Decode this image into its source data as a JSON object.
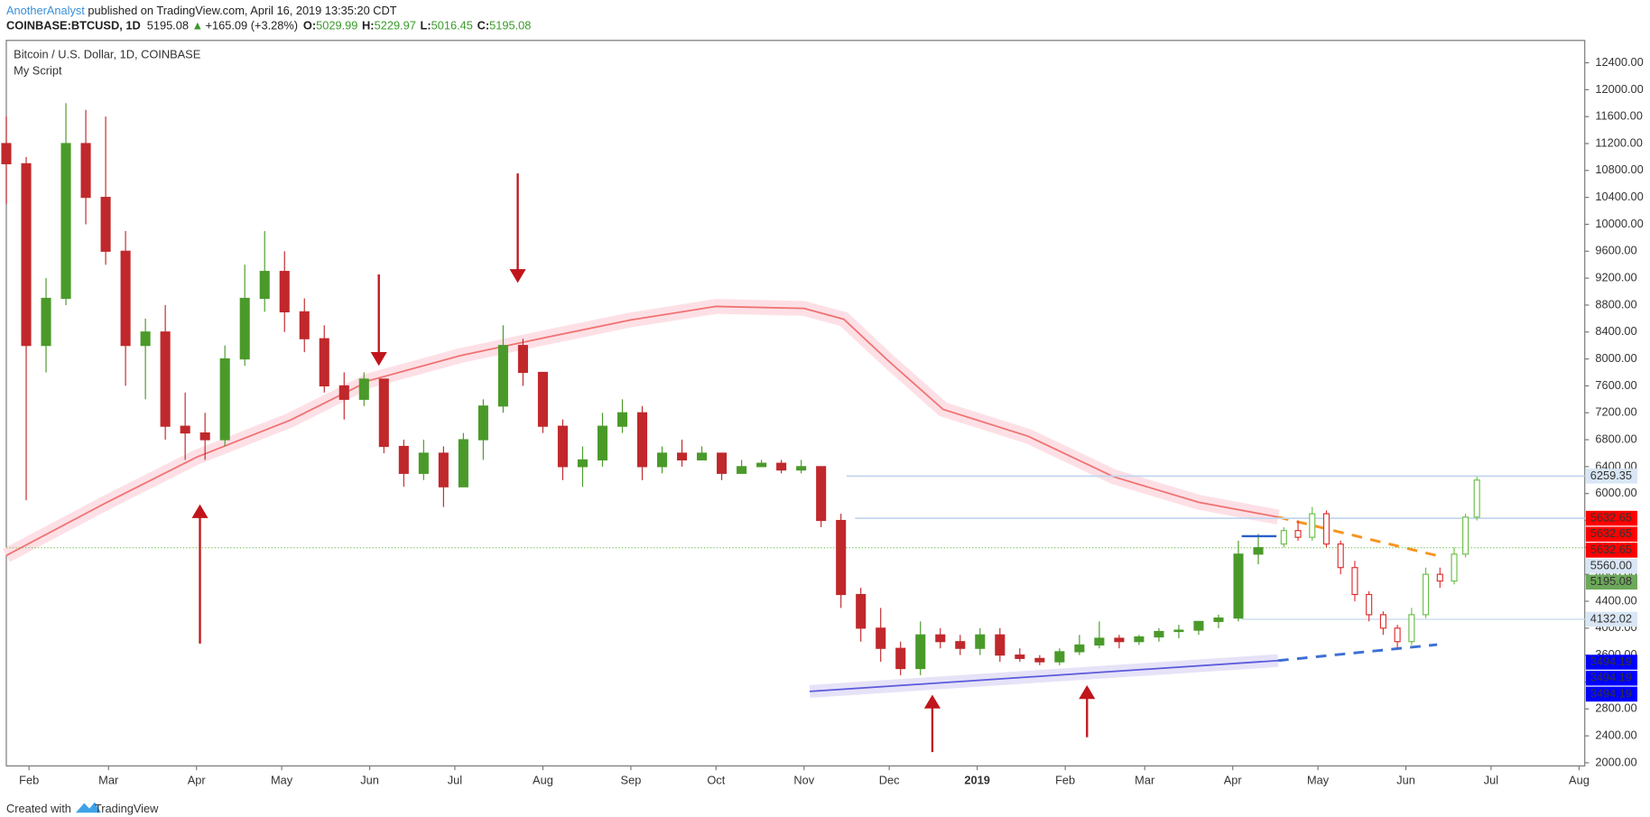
{
  "header": {
    "author": "AnotherAnalyst",
    "published": " published on TradingView.com, April 16, 2019 13:35:20 CDT",
    "symbol": "COINBASE:BTCUSD, 1D",
    "last": "5195.08",
    "arrow": "▲",
    "change": "+165.09 (+3.28%)",
    "o_label": "O:",
    "o": "5029.99",
    "h_label": "H:",
    "h": "5229.97",
    "l_label": "L:",
    "l": "5016.45",
    "c_label": "C:",
    "c": "5195.08"
  },
  "footer": {
    "created": "Created with",
    "brand": "TradingView"
  },
  "chart_data": {
    "type": "candlestick",
    "title": "Bitcoin / U.S. Dollar, 1D, COINBASE",
    "subtitle": "My Script",
    "up_color": "#4a9a2a",
    "down_color": "#c0282b",
    "xlim": [
      0,
      556
    ],
    "xticks": [
      {
        "value": 8,
        "label": "Feb"
      },
      {
        "value": 36,
        "label": "Mar"
      },
      {
        "value": 67,
        "label": "Apr"
      },
      {
        "value": 97,
        "label": "May"
      },
      {
        "value": 128,
        "label": "Jun"
      },
      {
        "value": 158,
        "label": "Jul"
      },
      {
        "value": 189,
        "label": "Aug"
      },
      {
        "value": 220,
        "label": "Sep"
      },
      {
        "value": 250,
        "label": "Oct"
      },
      {
        "value": 281,
        "label": "Nov"
      },
      {
        "value": 311,
        "label": "Dec"
      },
      {
        "value": 342,
        "label": "2019"
      },
      {
        "value": 373,
        "label": "Feb"
      },
      {
        "value": 401,
        "label": "Mar"
      },
      {
        "value": 432,
        "label": "Apr"
      },
      {
        "value": 462,
        "label": "May"
      },
      {
        "value": 493,
        "label": "Jun"
      },
      {
        "value": 523,
        "label": "Jul"
      },
      {
        "value": 554,
        "label": "Aug"
      }
    ],
    "ylim": [
      1953,
      12732
    ],
    "yticks": [
      {
        "value": 2000,
        "label": "2000.00"
      },
      {
        "value": 2400,
        "label": "2400.00"
      },
      {
        "value": 2800,
        "label": "2800.00"
      },
      {
        "value": 3200,
        "label": "3200.00"
      },
      {
        "value": 3600,
        "label": "3600.00"
      },
      {
        "value": 4000,
        "label": "4000.00"
      },
      {
        "value": 4400,
        "label": "4400.00"
      },
      {
        "value": 4800,
        "label": "4800.00"
      },
      {
        "value": 5200,
        "label": "5200.00"
      },
      {
        "value": 5600,
        "label": "5600.00"
      },
      {
        "value": 6000,
        "label": "6000.00"
      },
      {
        "value": 6400,
        "label": "6400.00"
      },
      {
        "value": 6800,
        "label": "6800.00"
      },
      {
        "value": 7200,
        "label": "7200.00"
      },
      {
        "value": 7600,
        "label": "7600.00"
      },
      {
        "value": 8000,
        "label": "8000.00"
      },
      {
        "value": 8400,
        "label": "8400.00"
      },
      {
        "value": 8800,
        "label": "8800.00"
      },
      {
        "value": 9200,
        "label": "9200.00"
      },
      {
        "value": 9600,
        "label": "9600.00"
      },
      {
        "value": 10000,
        "label": "10000.00"
      },
      {
        "value": 10400,
        "label": "10400.00"
      },
      {
        "value": 10800,
        "label": "10800.00"
      },
      {
        "value": 11200,
        "label": "11200.00"
      },
      {
        "value": 11600,
        "label": "11600.00"
      },
      {
        "value": 12000,
        "label": "12000.00"
      },
      {
        "value": 12400,
        "label": "12400.00"
      }
    ],
    "candles": {
      "x": [
        0,
        7,
        14,
        21,
        28,
        35,
        42,
        49,
        56,
        63,
        70,
        77,
        84,
        91,
        98,
        105,
        112,
        119,
        126,
        133,
        140,
        147,
        154,
        161,
        168,
        175,
        182,
        189,
        196,
        203,
        210,
        217,
        224,
        231,
        238,
        245,
        252,
        259,
        266,
        273,
        280,
        287,
        294,
        301,
        308,
        315,
        322,
        329,
        336,
        343,
        350,
        357,
        364,
        371,
        378,
        385,
        392,
        399,
        406,
        413,
        420,
        427,
        434,
        441
      ],
      "open": [
        11200,
        10900,
        8200,
        8900,
        11200,
        10400,
        9600,
        8200,
        8400,
        7000,
        6900,
        6800,
        8000,
        8900,
        9300,
        8700,
        8300,
        7600,
        7400,
        7700,
        6700,
        6300,
        6600,
        6100,
        6800,
        7300,
        8200,
        7800,
        7000,
        6400,
        6500,
        7000,
        7200,
        6400,
        6600,
        6500,
        6600,
        6300,
        6400,
        6450,
        6350,
        6400,
        5600,
        4500,
        4000,
        3700,
        3400,
        3900,
        3800,
        3700,
        3900,
        3600,
        3550,
        3500,
        3650,
        3750,
        3850,
        3800,
        3870,
        3950,
        3970,
        4100,
        4150,
        5100
      ],
      "high": [
        11600,
        11000,
        9200,
        11800,
        11700,
        11600,
        9900,
        8600,
        8800,
        7500,
        7200,
        8200,
        9400,
        9900,
        9600,
        8900,
        8500,
        7800,
        7800,
        7700,
        6800,
        6800,
        6700,
        6900,
        7400,
        8500,
        8300,
        7800,
        7100,
        6700,
        7200,
        7400,
        7300,
        6700,
        6800,
        6700,
        6600,
        6500,
        6500,
        6500,
        6500,
        6400,
        5700,
        4600,
        4300,
        3800,
        4100,
        4000,
        3900,
        4000,
        4000,
        3700,
        3600,
        3700,
        3900,
        4100,
        3900,
        3900,
        4000,
        4050,
        4100,
        4200,
        5300,
        5400
      ],
      "low": [
        10300,
        5900,
        7800,
        8800,
        10000,
        9400,
        7600,
        7400,
        6800,
        6500,
        6500,
        6700,
        7900,
        8700,
        8400,
        8100,
        7500,
        7100,
        7300,
        6600,
        6100,
        6200,
        5800,
        6100,
        6500,
        7200,
        7600,
        6900,
        6200,
        6100,
        6400,
        6900,
        6200,
        6300,
        6400,
        6500,
        6200,
        6300,
        6400,
        6300,
        6300,
        5500,
        4300,
        3800,
        3500,
        3300,
        3300,
        3700,
        3600,
        3600,
        3500,
        3500,
        3450,
        3450,
        3600,
        3700,
        3700,
        3750,
        3800,
        3850,
        3900,
        4000,
        4100,
        4950
      ],
      "close": [
        10900,
        8200,
        8900,
        11200,
        10400,
        9600,
        8200,
        8400,
        7000,
        6900,
        6800,
        8000,
        8900,
        9300,
        8700,
        8300,
        7600,
        7400,
        7700,
        6700,
        6300,
        6600,
        6100,
        6800,
        7300,
        8200,
        7800,
        7000,
        6400,
        6500,
        7000,
        7200,
        6400,
        6600,
        6500,
        6600,
        6300,
        6400,
        6450,
        6350,
        6400,
        5600,
        4500,
        4000,
        3700,
        3400,
        3900,
        3800,
        3700,
        3900,
        3600,
        3550,
        3500,
        3650,
        3750,
        3850,
        3800,
        3870,
        3950,
        3970,
        4100,
        4150,
        5100,
        5195.08
      ]
    },
    "projection": {
      "up_color": "#6cc04a",
      "down_color": "#e03030",
      "x": [
        450,
        455,
        460,
        465,
        470,
        475,
        480,
        485,
        490,
        495,
        500,
        505,
        510,
        514,
        518
      ],
      "open": [
        5250,
        5450,
        5350,
        5700,
        5250,
        4900,
        4500,
        4200,
        4000,
        3800,
        4200,
        4800,
        4700,
        5100,
        5650
      ],
      "high": [
        5500,
        5600,
        5800,
        5750,
        5300,
        5000,
        4550,
        4250,
        4050,
        4300,
        4900,
        4900,
        5200,
        5700,
        6250
      ],
      "low": [
        5200,
        5300,
        5300,
        5200,
        4800,
        4400,
        4100,
        3900,
        3700,
        3750,
        4150,
        4600,
        4650,
        5050,
        5600
      ],
      "close": [
        5450,
        5350,
        5700,
        5250,
        4900,
        4500,
        4200,
        4000,
        3800,
        4200,
        4800,
        4700,
        5100,
        5650,
        6200
      ]
    },
    "moving_average": {
      "color": "#f07272",
      "band_color": "#fde0e6",
      "x": [
        0,
        35,
        67,
        100,
        128,
        160,
        189,
        220,
        250,
        281,
        295,
        311,
        330,
        360,
        390,
        420,
        448
      ],
      "values": [
        5080,
        5860,
        6540,
        7090,
        7680,
        8050,
        8310,
        8580,
        8780,
        8750,
        8590,
        7960,
        7250,
        6850,
        6250,
        5870,
        5650
      ]
    },
    "trendlines": [
      {
        "x": [
          283,
          448
        ],
        "values": [
          3060,
          3518
        ],
        "color": "#5b5bdb",
        "dash": false,
        "band_color": "#e6e2f8"
      },
      {
        "x": [
          448,
          504
        ],
        "values": [
          3518,
          3755
        ],
        "color": "#3d6fd6",
        "dash": true
      },
      {
        "x": [
          448,
          505
        ],
        "values": [
          5650,
          5067
        ],
        "color": "#f7941d",
        "dash": true
      }
    ],
    "levels": [
      {
        "value": 6259.35,
        "x": 296,
        "color": "#c3d6ee"
      },
      {
        "value": 5632.65,
        "x": 299,
        "color": "#c3d6ee"
      },
      {
        "value": 4132.02,
        "x": 435,
        "color": "#d7e3f1"
      }
    ],
    "last_price": {
      "value": 5195.08,
      "color": "#6cc04a"
    },
    "price_labels": [
      {
        "value": 6259.35,
        "label": "6259.35",
        "color": "#d9e6f5",
        "text_color": "#222"
      },
      {
        "value": 5632.65,
        "label": "5632.65",
        "color": "#ff0000",
        "text_color": "#fff"
      },
      {
        "value": 5632.65,
        "label": "5632.65",
        "color": "#ff0000",
        "text_color": "#fff"
      },
      {
        "value": 5632.65,
        "label": "5632.65",
        "color": "#ff0000",
        "text_color": "#fff"
      },
      {
        "value": 5560,
        "label": "5560.00",
        "color": "#d9e6f5",
        "text_color": "#222"
      },
      {
        "value": 5195.08,
        "label": "5195.08",
        "color": "#6ca85a",
        "text_color": "#fff"
      },
      {
        "value": 4132.02,
        "label": "4132.02",
        "color": "#d9e6f5",
        "text_color": "#222"
      },
      {
        "value": 3494.19,
        "label": "3494.19",
        "color": "#0000ff",
        "text_color": "#fff"
      },
      {
        "value": 3494.19,
        "label": "3494.19",
        "color": "#0000ff",
        "text_color": "#fff"
      },
      {
        "value": 3494.19,
        "label": "3494.19",
        "color": "#0000ff",
        "text_color": "#fff"
      }
    ]
  }
}
